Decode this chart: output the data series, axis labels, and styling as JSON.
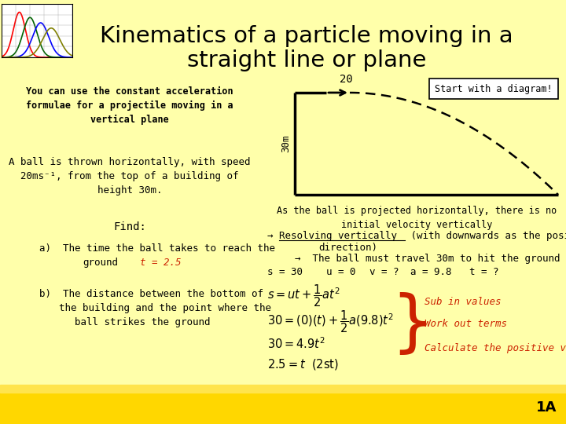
{
  "bg_color": "#FFFFAA",
  "bg_bottom_color": "#FFD700",
  "title_line1": "Kinematics of a particle moving in a",
  "title_line2": "straight line or plane",
  "slide_number": "1A",
  "start_box_text": "Start with a diagram!",
  "left_bold_text": "You can use the constant acceleration\nformulae for a projectile moving in a\nvertical plane",
  "problem_text": "A ball is thrown horizontally, with speed\n20ms⁻¹, from the top of a building of\nheight 30m.",
  "find_text": "Find:",
  "sub_label": "Sub in values",
  "workout_label": "Work out terms",
  "calc_label": "Calculate the positive value",
  "red_color": "#CC2200",
  "diagram_label_20": "20",
  "diagram_label_30m": "30m"
}
